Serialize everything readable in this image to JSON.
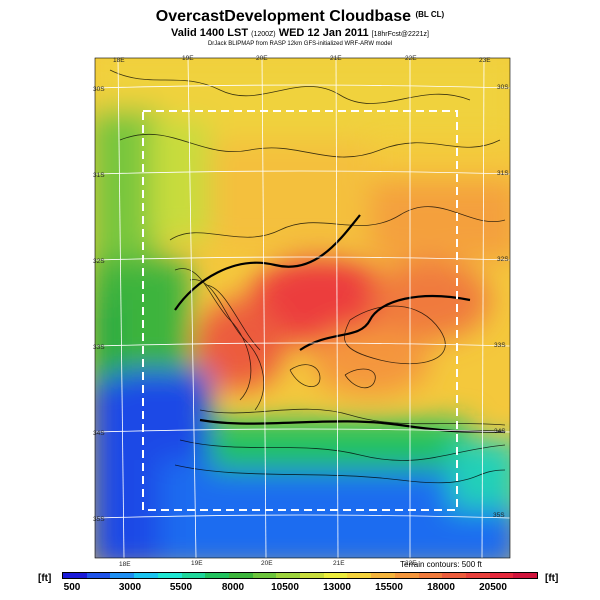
{
  "header": {
    "title": "OvercastDevelopment Cloudbase",
    "title_tag": "(BL CL)",
    "valid_line": "Valid 1400 LST",
    "valid_code": "(1200Z)",
    "valid_date": "WED 12 Jan 2011",
    "valid_suffix": "[18hrFcst@2221z]",
    "credit": "DrJack BLIPMAP from RASP 12km GFS-initialized WRF-ARW model"
  },
  "map_labels": {
    "top": [
      "18E",
      "19E",
      "20E",
      "21E",
      "22E",
      "23E"
    ],
    "bottom": [
      "18E",
      "19E",
      "20E",
      "21E",
      "22E"
    ],
    "left": [
      "30S",
      "31S",
      "32S",
      "33S",
      "34S",
      "35S"
    ],
    "right": [
      "30S",
      "31S",
      "32S",
      "33S",
      "34S",
      "35S"
    ]
  },
  "terrain_note": "Terrain contours: 500 ft",
  "legend": {
    "unit_left": "[ft]",
    "unit_right": "[ft]",
    "ticks": [
      "500",
      "3000",
      "5500",
      "8000",
      "10500",
      "13000",
      "15500",
      "18000",
      "20500"
    ],
    "colors": [
      "#1b1bd8",
      "#1f54ea",
      "#1f8ff2",
      "#1cc4f0",
      "#1fe6d2",
      "#1fd69a",
      "#22c25e",
      "#3cb43c",
      "#6cc43c",
      "#9cd23c",
      "#c8dc3c",
      "#ecec3c",
      "#f4d23c",
      "#f4b43c",
      "#f4963c",
      "#f07a3c",
      "#ec5c3c",
      "#e8403c",
      "#e4283c",
      "#d0143c"
    ]
  }
}
